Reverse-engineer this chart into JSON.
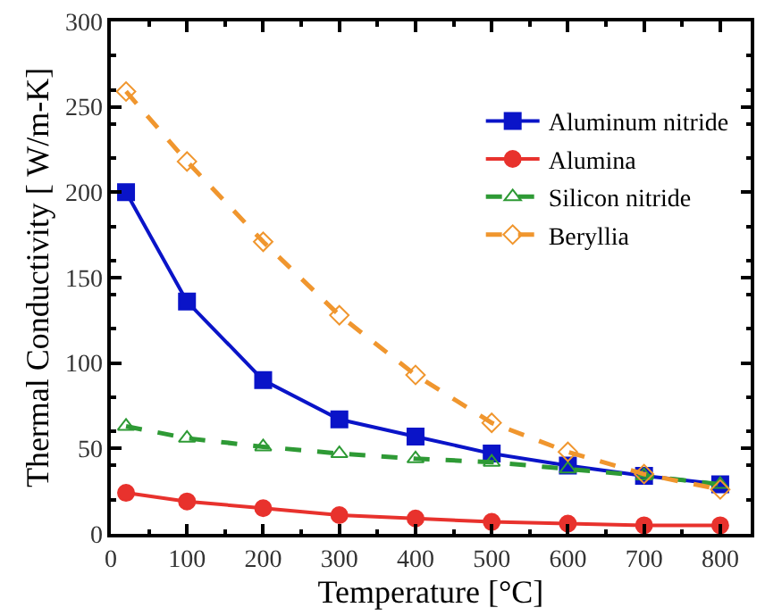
{
  "chart_data": {
    "type": "line",
    "xlabel": "Temperature [°C]",
    "ylabel": "Thermal Conductivity [ W/m-K]",
    "x": [
      20,
      100,
      200,
      300,
      400,
      500,
      600,
      700,
      800
    ],
    "xlim": [
      0,
      840
    ],
    "xticks": [
      0,
      100,
      200,
      300,
      400,
      500,
      600,
      700,
      800
    ],
    "ylim": [
      0,
      300
    ],
    "yticks": [
      0,
      50,
      100,
      150,
      200,
      250,
      300
    ],
    "legend": "top right",
    "series": [
      {
        "name": "Aluminum nitride",
        "color": "#0a14c8",
        "marker": "square",
        "line_style": "solid",
        "values": [
          200,
          136,
          90,
          67,
          57,
          47,
          40,
          34,
          29
        ]
      },
      {
        "name": "Alumina",
        "color": "#e8322d",
        "marker": "circle",
        "line_style": "solid",
        "values": [
          24,
          19,
          15,
          11,
          9,
          7,
          6,
          5,
          5
        ]
      },
      {
        "name": "Silicon nitride",
        "color": "#2e9a35",
        "marker": "triangle",
        "line_style": "dashed",
        "values": [
          63,
          56,
          51,
          47,
          44,
          42,
          38,
          34,
          29
        ]
      },
      {
        "name": "Beryllia",
        "color": "#f0962e",
        "marker": "diamond",
        "line_style": "dashed",
        "values": [
          259,
          218,
          171,
          128,
          93,
          65,
          48,
          35,
          26
        ]
      }
    ]
  }
}
